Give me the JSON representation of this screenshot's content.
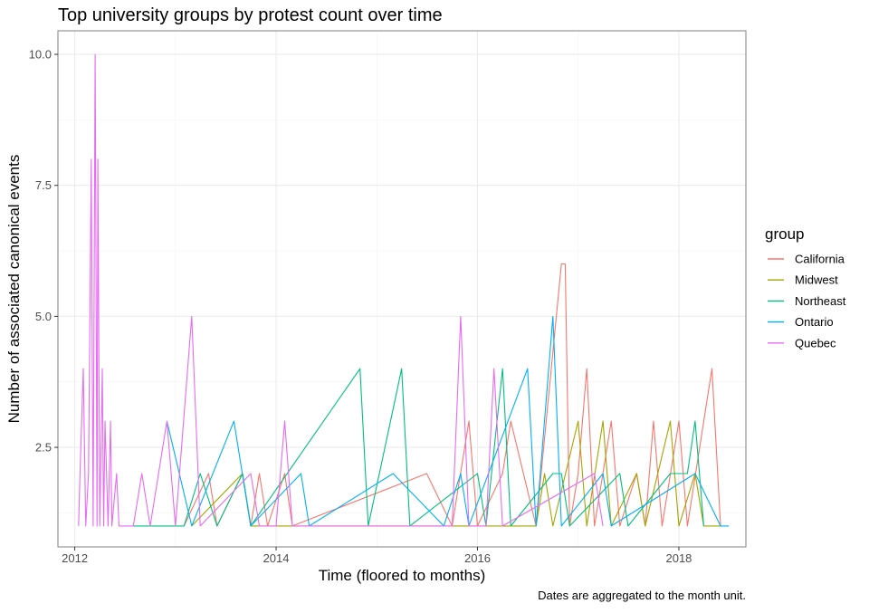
{
  "chart_data": {
    "type": "line",
    "title": "Top university groups by protest count over time",
    "xlabel": "Time (floored to months)",
    "ylabel": "Number of associated canonical events",
    "caption": "Dates are aggregated to the month unit.",
    "legend_title": "group",
    "legend_position": "right",
    "grid": true,
    "x_ticks": [
      "2012",
      "2014",
      "2016",
      "2018"
    ],
    "y_ticks": [
      "2.5",
      "5.0",
      "7.5",
      "10.0"
    ],
    "xlim": [
      "2011-11-01",
      "2018-09-01"
    ],
    "ylim": [
      0.6,
      10.45
    ],
    "series": [
      {
        "name": "California",
        "color": "#F8766D",
        "points": [
          [
            "2013-02-01",
            1
          ],
          [
            "2013-05-01",
            2
          ],
          [
            "2013-06-01",
            1
          ],
          [
            "2013-09-01",
            2
          ],
          [
            "2013-10-01",
            1
          ],
          [
            "2013-11-01",
            2
          ],
          [
            "2013-12-01",
            1
          ],
          [
            "2014-02-01",
            2
          ],
          [
            "2014-03-01",
            1
          ],
          [
            "2015-07-01",
            2
          ],
          [
            "2015-10-01",
            1
          ],
          [
            "2015-12-01",
            3
          ],
          [
            "2016-01-01",
            1
          ],
          [
            "2016-04-01",
            2
          ],
          [
            "2016-05-01",
            3
          ],
          [
            "2016-08-01",
            1
          ],
          [
            "2016-11-01",
            6
          ],
          [
            "2016-11-15",
            6
          ],
          [
            "2016-12-01",
            1
          ],
          [
            "2017-01-01",
            2
          ],
          [
            "2017-02-01",
            4
          ],
          [
            "2017-03-01",
            1
          ],
          [
            "2017-05-01",
            3
          ],
          [
            "2017-06-01",
            1
          ],
          [
            "2017-08-01",
            2
          ],
          [
            "2017-09-01",
            1
          ],
          [
            "2017-10-01",
            3
          ],
          [
            "2017-11-01",
            1
          ],
          [
            "2018-01-01",
            3
          ],
          [
            "2018-02-01",
            1
          ],
          [
            "2018-05-01",
            4
          ],
          [
            "2018-06-01",
            1
          ]
        ]
      },
      {
        "name": "Midwest",
        "color": "#A3A500",
        "points": [
          [
            "2013-03-01",
            1
          ],
          [
            "2013-09-01",
            2
          ],
          [
            "2013-10-01",
            1
          ],
          [
            "2016-08-01",
            1
          ],
          [
            "2016-09-01",
            2
          ],
          [
            "2016-10-01",
            1
          ],
          [
            "2017-01-01",
            3
          ],
          [
            "2017-02-01",
            1
          ],
          [
            "2017-04-01",
            3
          ],
          [
            "2017-05-01",
            1
          ],
          [
            "2017-08-01",
            2
          ],
          [
            "2017-09-01",
            1
          ],
          [
            "2017-12-01",
            3
          ],
          [
            "2018-01-01",
            1
          ],
          [
            "2018-03-01",
            2
          ],
          [
            "2018-04-01",
            1
          ],
          [
            "2018-06-01",
            1
          ]
        ]
      },
      {
        "name": "Northeast",
        "color": "#00BF7D",
        "points": [
          [
            "2012-08-01",
            1
          ],
          [
            "2013-02-01",
            1
          ],
          [
            "2013-04-01",
            2
          ],
          [
            "2013-06-01",
            1
          ],
          [
            "2013-09-01",
            2
          ],
          [
            "2013-10-01",
            1
          ],
          [
            "2014-11-01",
            4
          ],
          [
            "2014-12-01",
            1
          ],
          [
            "2015-04-01",
            4
          ],
          [
            "2015-05-01",
            1
          ],
          [
            "2016-01-01",
            2
          ],
          [
            "2016-02-01",
            1
          ],
          [
            "2016-04-01",
            4
          ],
          [
            "2016-05-01",
            1
          ],
          [
            "2016-10-01",
            2
          ],
          [
            "2016-11-01",
            2
          ],
          [
            "2016-12-01",
            1
          ],
          [
            "2017-06-01",
            2
          ],
          [
            "2017-07-01",
            1
          ],
          [
            "2017-12-01",
            2
          ],
          [
            "2018-02-01",
            2
          ],
          [
            "2018-03-01",
            3
          ],
          [
            "2018-04-01",
            1
          ]
        ]
      },
      {
        "name": "Ontario",
        "color": "#00B0F6",
        "points": [
          [
            "2012-12-01",
            3
          ],
          [
            "2013-03-01",
            1
          ],
          [
            "2013-08-01",
            3
          ],
          [
            "2013-10-01",
            1
          ],
          [
            "2014-04-01",
            2
          ],
          [
            "2014-05-01",
            1
          ],
          [
            "2015-03-01",
            2
          ],
          [
            "2015-09-01",
            1
          ],
          [
            "2015-11-01",
            2
          ],
          [
            "2015-12-01",
            1
          ],
          [
            "2016-07-01",
            4
          ],
          [
            "2016-08-01",
            1
          ],
          [
            "2016-10-01",
            5
          ],
          [
            "2016-11-01",
            1
          ],
          [
            "2017-04-01",
            2
          ],
          [
            "2017-05-01",
            1
          ],
          [
            "2018-03-01",
            2
          ],
          [
            "2018-06-01",
            1
          ],
          [
            "2018-07-01",
            1
          ]
        ]
      },
      {
        "name": "Quebec",
        "color": "#E76BF3",
        "points": [
          [
            "2012-01-15",
            1
          ],
          [
            "2012-01-20",
            2
          ],
          [
            "2012-02-01",
            4
          ],
          [
            "2012-02-10",
            1
          ],
          [
            "2012-02-20",
            2
          ],
          [
            "2012-03-01",
            8
          ],
          [
            "2012-03-08",
            1
          ],
          [
            "2012-03-15",
            10
          ],
          [
            "2012-03-22",
            1
          ],
          [
            "2012-03-25",
            8
          ],
          [
            "2012-04-01",
            1
          ],
          [
            "2012-04-10",
            4
          ],
          [
            "2012-04-15",
            1
          ],
          [
            "2012-04-20",
            3
          ],
          [
            "2012-05-01",
            1
          ],
          [
            "2012-05-10",
            3
          ],
          [
            "2012-05-15",
            1
          ],
          [
            "2012-06-01",
            2
          ],
          [
            "2012-06-10",
            1
          ],
          [
            "2012-08-01",
            1
          ],
          [
            "2012-09-01",
            2
          ],
          [
            "2012-10-01",
            1
          ],
          [
            "2012-12-01",
            3
          ],
          [
            "2013-01-01",
            1
          ],
          [
            "2013-03-01",
            5
          ],
          [
            "2013-04-01",
            1
          ],
          [
            "2013-10-01",
            2
          ],
          [
            "2013-11-01",
            1
          ],
          [
            "2014-01-01",
            1
          ],
          [
            "2014-02-01",
            3
          ],
          [
            "2014-03-01",
            1
          ],
          [
            "2015-10-01",
            1
          ],
          [
            "2015-11-01",
            5
          ],
          [
            "2015-12-01",
            1
          ],
          [
            "2016-02-01",
            1
          ],
          [
            "2016-03-01",
            4
          ],
          [
            "2016-04-01",
            1
          ],
          [
            "2017-03-01",
            2
          ],
          [
            "2017-04-01",
            1
          ]
        ]
      }
    ]
  }
}
